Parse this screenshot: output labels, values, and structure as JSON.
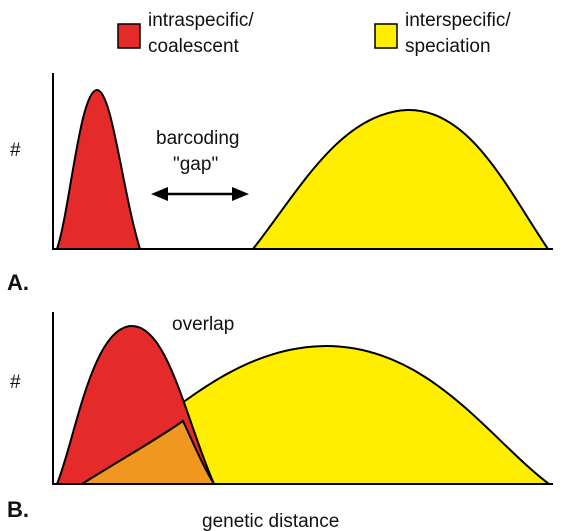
{
  "legend": {
    "intraspecific": {
      "line1": "intraspecific/",
      "line2": "coalescent",
      "color": "#e52a2a"
    },
    "interspecific": {
      "line1": "interspecific/",
      "line2": "speciation",
      "color": "#ffee00"
    }
  },
  "panel_a": {
    "label": "A.",
    "ylabel": "#",
    "annotation_line1": "barcoding",
    "annotation_line2": "\"gap\""
  },
  "panel_b": {
    "label": "B.",
    "ylabel": "#",
    "annotation": "overlap",
    "overlap_color": "#f0971f"
  },
  "xlabel": "genetic distance"
}
